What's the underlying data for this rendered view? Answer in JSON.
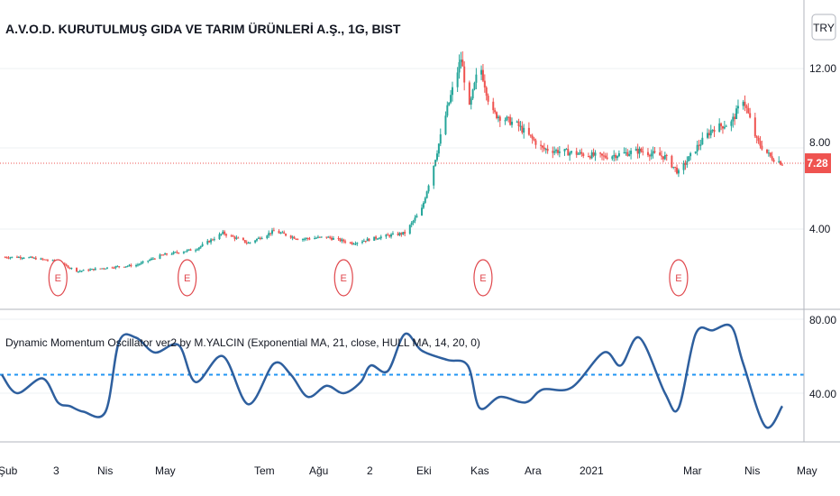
{
  "header": {
    "title": "A.V.O.D. KURUTULMUŞ GIDA VE TARIM ÜRÜNLERİ A.Ş., 1G, BIST",
    "currency_button": "TRY"
  },
  "colors": {
    "up": "#26a69a",
    "down": "#ef5350",
    "last_price": "#ef5350",
    "oscillator": "#2e5f9e",
    "level_line": "#2196f3",
    "earnings": "#e0474c",
    "grid": "#eef0f3"
  },
  "price_panel": {
    "axis_ticks": [
      "12.00",
      "8.00",
      "4.00"
    ],
    "last_price_label": "7.28",
    "earnings_marker_label": "E"
  },
  "oscillator_panel": {
    "title": "Dynamic Momentum Oscillator ver2 by M.YALCIN (Exponential MA, 21, close, HULL MA, 14, 20, 0)",
    "axis_ticks": [
      "80.00",
      "40.00"
    ]
  },
  "time_axis": {
    "labels": [
      "Şub",
      "3",
      "Nis",
      "May",
      "Tem",
      "Ağu",
      "2",
      "Eki",
      "Kas",
      "Ara",
      "2021",
      "Mar",
      "Nis",
      "May"
    ]
  },
  "chart_data": [
    {
      "type": "candlestick",
      "title": "A.V.O.D. KURUTULMUŞ GIDA VE TARIM ÜRÜNLERİ A.Ş., 1G, BIST",
      "x": [
        "2020-02",
        "2020-03",
        "2020-04",
        "2020-05",
        "2020-06",
        "2020-07",
        "2020-08",
        "2020-09",
        "2020-10",
        "2020-11",
        "2020-12",
        "2021-01",
        "2021-02",
        "2021-03",
        "2021-04"
      ],
      "y_axis_ticks": [
        4.0,
        8.0,
        12.0
      ],
      "ylim": [
        0.5,
        13.8
      ],
      "last_price": 7.28,
      "close_path": [
        [
          "2020-02-01",
          2.6
        ],
        [
          "2020-02-15",
          2.6
        ],
        [
          "2020-03-03",
          2.4
        ],
        [
          "2020-03-17",
          1.9
        ],
        [
          "2020-04-05",
          2.1
        ],
        [
          "2020-04-20",
          2.2
        ],
        [
          "2020-05-05",
          2.7
        ],
        [
          "2020-05-25",
          3.0
        ],
        [
          "2020-06-10",
          3.8
        ],
        [
          "2020-06-25",
          3.3
        ],
        [
          "2020-07-10",
          3.9
        ],
        [
          "2020-07-25",
          3.5
        ],
        [
          "2020-08-10",
          3.6
        ],
        [
          "2020-08-25",
          3.3
        ],
        [
          "2020-09-10",
          3.6
        ],
        [
          "2020-09-25",
          3.8
        ],
        [
          "2020-10-05",
          5.0
        ],
        [
          "2020-10-12",
          7.2
        ],
        [
          "2020-10-20",
          10.0
        ],
        [
          "2020-10-28",
          12.5
        ],
        [
          "2020-11-02",
          10.0
        ],
        [
          "2020-11-08",
          12.3
        ],
        [
          "2020-11-15",
          9.8
        ],
        [
          "2020-11-30",
          9.2
        ],
        [
          "2020-12-15",
          8.0
        ],
        [
          "2021-01-01",
          7.8
        ],
        [
          "2021-01-20",
          7.6
        ],
        [
          "2021-02-10",
          7.9
        ],
        [
          "2021-02-25",
          7.6
        ],
        [
          "2021-03-05",
          6.8
        ],
        [
          "2021-03-15",
          8.0
        ],
        [
          "2021-03-25",
          9.0
        ],
        [
          "2021-04-05",
          9.3
        ],
        [
          "2021-04-12",
          10.5
        ],
        [
          "2021-04-20",
          8.4
        ],
        [
          "2021-04-28",
          7.6
        ],
        [
          "2021-05-05",
          7.28
        ]
      ],
      "earnings_events": [
        "2020-03-05",
        "2020-05-20",
        "2020-08-20",
        "2020-11-10",
        "2021-03-05"
      ]
    },
    {
      "type": "line",
      "title": "Dynamic Momentum Oscillator ver2 by M.YALCIN (Exponential MA, 21, close, HULL MA, 14, 20, 0)",
      "y_axis_ticks": [
        40.0,
        80.0
      ],
      "ylim": [
        15,
        85
      ],
      "level": 50,
      "series": [
        {
          "values": [
            [
              "2020-02-01",
              50
            ],
            [
              "2020-02-10",
              40
            ],
            [
              "2020-02-25",
              48
            ],
            [
              "2020-03-05",
              35
            ],
            [
              "2020-03-12",
              33
            ],
            [
              "2020-03-20",
              30
            ],
            [
              "2020-04-02",
              30
            ],
            [
              "2020-04-10",
              68
            ],
            [
              "2020-04-20",
              70
            ],
            [
              "2020-05-01",
              62
            ],
            [
              "2020-05-15",
              66
            ],
            [
              "2020-05-25",
              46
            ],
            [
              "2020-06-10",
              60
            ],
            [
              "2020-06-25",
              34
            ],
            [
              "2020-07-10",
              56
            ],
            [
              "2020-07-20",
              50
            ],
            [
              "2020-07-30",
              38
            ],
            [
              "2020-08-10",
              44
            ],
            [
              "2020-08-20",
              40
            ],
            [
              "2020-08-30",
              46
            ],
            [
              "2020-09-05",
              55
            ],
            [
              "2020-09-15",
              52
            ],
            [
              "2020-09-25",
              72
            ],
            [
              "2020-10-05",
              63
            ],
            [
              "2020-10-20",
              58
            ],
            [
              "2020-11-01",
              55
            ],
            [
              "2020-11-08",
              32
            ],
            [
              "2020-11-20",
              38
            ],
            [
              "2020-12-05",
              35
            ],
            [
              "2020-12-15",
              42
            ],
            [
              "2021-01-01",
              43
            ],
            [
              "2021-01-20",
              62
            ],
            [
              "2021-01-30",
              55
            ],
            [
              "2021-02-10",
              70
            ],
            [
              "2021-02-25",
              40
            ],
            [
              "2021-03-05",
              32
            ],
            [
              "2021-03-15",
              72
            ],
            [
              "2021-03-25",
              74
            ],
            [
              "2021-04-05",
              76
            ],
            [
              "2021-04-12",
              56
            ],
            [
              "2021-04-25",
              22
            ],
            [
              "2021-05-05",
              33
            ]
          ]
        }
      ]
    }
  ]
}
